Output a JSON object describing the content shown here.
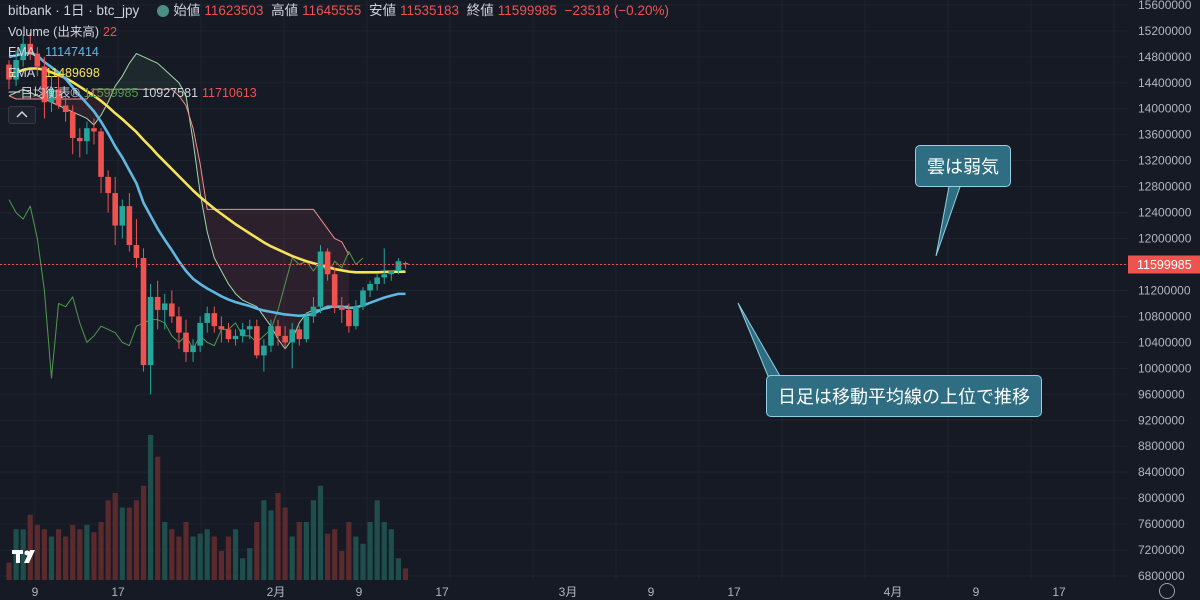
{
  "header": {
    "symbol": "bitbank · 1日 · btc_jpy",
    "open_label": "始値",
    "open": "11623503",
    "high_label": "高値",
    "high": "11645555",
    "low_label": "安値",
    "low": "11535183",
    "close_label": "終値",
    "close": "11599985",
    "change": "−23518 (−0.20%)"
  },
  "indicators": {
    "volume_label": "Volume (出来高)",
    "volume_value": "22",
    "ema1_label": "EMA",
    "ema1_value": "11147414",
    "ema2_label": "EMA",
    "ema2_value": "11489698",
    "ichimoku_label": "一目均衡表®",
    "ichimoku_v1": "11599985",
    "ichimoku_v2": "10927581",
    "ichimoku_v3": "11710613"
  },
  "annotations": {
    "cloud": "雲は弱気",
    "trend": "日足は移動平均線の上位で推移"
  },
  "colors": {
    "background": "#161a25",
    "up": "#26a69a",
    "down": "#ef5350",
    "ema_fast": "#5fb8e0",
    "ema_slow": "#f5e35b",
    "chikou": "#4f9a4f",
    "span_a": "#a5d6a7",
    "span_b": "#f28b8b",
    "price_line": "#ef5350",
    "tag_bg": "#ef5350",
    "callout_bg": "#2f6e82"
  },
  "chart_data": {
    "type": "candlestick",
    "price_axis": [
      "15600000",
      "15200000",
      "14800000",
      "14400000",
      "14000000",
      "13600000",
      "13200000",
      "12800000",
      "12400000",
      "12000000",
      "11600000",
      "11200000",
      "10800000",
      "10400000",
      "10000000",
      "9600000",
      "9200000",
      "8800000",
      "8400000",
      "8000000",
      "7600000",
      "7200000",
      "6800000"
    ],
    "last_price": "11599985",
    "x_labels": [
      "9",
      "17",
      "2月",
      "9",
      "17",
      "3月",
      "9",
      "17",
      "4月",
      "9",
      "17"
    ],
    "candles": [
      [
        14680000,
        14750000,
        14300000,
        14450000
      ],
      [
        14450000,
        14900000,
        14350000,
        14750000
      ],
      [
        14750000,
        15150000,
        14650000,
        15000000
      ],
      [
        15000000,
        15180000,
        14750000,
        14850000
      ],
      [
        14850000,
        14950000,
        14500000,
        14650000
      ],
      [
        14650000,
        14800000,
        13850000,
        14100000
      ],
      [
        14100000,
        14500000,
        13950000,
        14300000
      ],
      [
        14300000,
        14500000,
        14000000,
        14050000
      ],
      [
        14050000,
        14200000,
        13800000,
        13950000
      ],
      [
        13950000,
        14050000,
        13300000,
        13550000
      ],
      [
        13550000,
        13700000,
        13250000,
        13500000
      ],
      [
        13500000,
        13800000,
        13300000,
        13700000
      ],
      [
        13700000,
        13850000,
        13450000,
        13650000
      ],
      [
        13650000,
        13700000,
        12700000,
        12950000
      ],
      [
        12950000,
        13050000,
        12400000,
        12700000
      ],
      [
        12700000,
        12950000,
        11900000,
        12200000
      ],
      [
        12200000,
        12600000,
        12000000,
        12500000
      ],
      [
        12500000,
        12700000,
        11800000,
        11900000
      ],
      [
        11900000,
        12300000,
        11550000,
        11700000
      ],
      [
        11700000,
        11850000,
        9950000,
        10050000
      ],
      [
        10050000,
        11300000,
        9600000,
        11100000
      ],
      [
        11100000,
        11350000,
        10600000,
        10900000
      ],
      [
        10900000,
        11150000,
        10600000,
        11000000
      ],
      [
        11000000,
        11200000,
        10700000,
        10800000
      ],
      [
        10800000,
        10950000,
        10300000,
        10550000
      ],
      [
        10550000,
        10750000,
        10100000,
        10250000
      ],
      [
        10250000,
        10450000,
        10100000,
        10350000
      ],
      [
        10350000,
        10800000,
        10250000,
        10700000
      ],
      [
        10700000,
        10950000,
        10550000,
        10850000
      ],
      [
        10850000,
        10950000,
        10550000,
        10650000
      ],
      [
        10650000,
        10800000,
        10400000,
        10600000
      ],
      [
        10600000,
        10700000,
        10400000,
        10450000
      ],
      [
        10450000,
        10600000,
        10350000,
        10500000
      ],
      [
        10500000,
        10700000,
        10400000,
        10600000
      ],
      [
        10600000,
        10750000,
        10450000,
        10650000
      ],
      [
        10650000,
        10750000,
        10150000,
        10200000
      ],
      [
        10200000,
        10450000,
        9950000,
        10350000
      ],
      [
        10350000,
        10750000,
        10250000,
        10650000
      ],
      [
        10650000,
        10750000,
        10350000,
        10500000
      ],
      [
        10500000,
        10650000,
        10300000,
        10400000
      ],
      [
        10400000,
        10700000,
        10000000,
        10600000
      ],
      [
        10600000,
        10650000,
        10350000,
        10450000
      ],
      [
        10450000,
        10850000,
        10400000,
        10800000
      ],
      [
        10800000,
        11100000,
        10700000,
        10950000
      ],
      [
        10950000,
        11900000,
        10850000,
        11800000
      ],
      [
        11800000,
        11850000,
        11350000,
        11450000
      ],
      [
        11450000,
        11550000,
        10850000,
        10950000
      ],
      [
        10950000,
        11100000,
        10700000,
        10900000
      ],
      [
        10900000,
        11000000,
        10550000,
        10650000
      ],
      [
        10650000,
        11050000,
        10600000,
        10950000
      ],
      [
        10950000,
        11250000,
        10900000,
        11200000
      ],
      [
        11200000,
        11350000,
        11100000,
        11300000
      ],
      [
        11300000,
        11450000,
        11200000,
        11400000
      ],
      [
        11400000,
        11850000,
        11300000,
        11450000
      ],
      [
        11450000,
        11500000,
        11350000,
        11500000
      ],
      [
        11500000,
        11700000,
        11450000,
        11650000
      ],
      [
        11623503,
        11645555,
        11535183,
        11599985
      ]
    ],
    "volume_axis": [
      "6800000",
      "7200000",
      "7600000",
      "8000000"
    ],
    "volume_relative": [
      0.12,
      0.35,
      0.35,
      0.45,
      0.38,
      0.35,
      0.3,
      0.35,
      0.3,
      0.38,
      0.35,
      0.38,
      0.33,
      0.4,
      0.55,
      0.6,
      0.5,
      0.5,
      0.55,
      0.65,
      1.0,
      0.85,
      0.4,
      0.35,
      0.3,
      0.4,
      0.3,
      0.32,
      0.35,
      0.3,
      0.2,
      0.3,
      0.35,
      0.15,
      0.22,
      0.4,
      0.55,
      0.48,
      0.6,
      0.5,
      0.3,
      0.4,
      0.4,
      0.55,
      0.65,
      0.32,
      0.35,
      0.2,
      0.4,
      0.3,
      0.25,
      0.4,
      0.55,
      0.4,
      0.35,
      0.15,
      0.08
    ],
    "ema_fast": [
      14800000,
      14820000,
      14850000,
      14860000,
      14820000,
      14720000,
      14640000,
      14560000,
      14460000,
      14330000,
      14200000,
      14080000,
      13960000,
      13800000,
      13620000,
      13420000,
      13250000,
      13050000,
      12850000,
      12550000,
      12350000,
      12150000,
      11980000,
      11820000,
      11650000,
      11500000,
      11380000,
      11300000,
      11230000,
      11170000,
      11110000,
      11060000,
      11020000,
      10990000,
      10960000,
      10920000,
      10890000,
      10870000,
      10850000,
      10830000,
      10820000,
      10810000,
      10820000,
      10840000,
      10900000,
      10950000,
      10950000,
      10950000,
      10930000,
      10940000,
      10970000,
      11010000,
      11050000,
      11090000,
      11120000,
      11147414,
      11147414
    ],
    "ema_slow": [
      14500000,
      14550000,
      14600000,
      14620000,
      14620000,
      14600000,
      14560000,
      14520000,
      14470000,
      14410000,
      14340000,
      14270000,
      14200000,
      14120000,
      14030000,
      13930000,
      13840000,
      13740000,
      13640000,
      13520000,
      13410000,
      13290000,
      13180000,
      13070000,
      12960000,
      12850000,
      12740000,
      12640000,
      12550000,
      12460000,
      12380000,
      12300000,
      12220000,
      12150000,
      12080000,
      12010000,
      11940000,
      11880000,
      11830000,
      11780000,
      11730000,
      11690000,
      11650000,
      11620000,
      11590000,
      11560000,
      11530000,
      11510000,
      11490000,
      11480000,
      11480000,
      11480000,
      11480000,
      11485000,
      11488000,
      11489698,
      11489698
    ],
    "chikou": [
      12600000,
      12400000,
      12300000,
      12500000,
      12000000,
      11200000,
      9850000,
      11000000,
      10950000,
      11100000,
      10700000,
      10400000,
      10500000,
      10650000,
      10600000,
      10550000,
      10400000,
      10350000,
      10650000,
      10700000,
      10750000,
      10750000,
      10700000,
      10500000,
      10400000,
      10500000,
      10300000,
      10500000,
      10400000,
      10350000,
      10600000,
      10600000,
      10700000,
      10500000,
      10500000,
      10400000,
      10500000,
      10600000,
      10900000,
      11300000,
      11700000,
      11600000,
      11650000,
      11500000,
      11650000,
      11450000,
      11650000,
      11550000,
      11800000,
      11600000,
      11700000
    ],
    "span_a": [
      14200000,
      14250000,
      14300000,
      14250000,
      14200000,
      14150000,
      14100000,
      14050000,
      14000000,
      13950000,
      13900000,
      13850000,
      13750000,
      13900000,
      14100000,
      14350000,
      14500000,
      14700000,
      14850000,
      14800000,
      14750000,
      14700000,
      14600000,
      14500000,
      14400000,
      14200000,
      13500000,
      12700000,
      12100000,
      11700000,
      11500000,
      11300000,
      11150000,
      11050000,
      11000000,
      10950000,
      10800000,
      10650000,
      10450000,
      10300000,
      10450000,
      10700000,
      10850000,
      10900000,
      10900000,
      10920000,
      10950000,
      10950000,
      10960000
    ],
    "span_b": [
      14200000,
      14150000,
      14150000,
      14150000,
      14150000,
      14150000,
      14150000,
      14150000,
      14150000,
      14150000,
      14150000,
      14150000,
      14300000,
      14300000,
      14300000,
      14300000,
      14300000,
      14300000,
      14300000,
      14300000,
      14300000,
      14300000,
      14300000,
      14300000,
      14200000,
      14050000,
      13700000,
      13150000,
      12450000,
      12450000,
      12450000,
      12450000,
      12450000,
      12450000,
      12450000,
      12450000,
      12450000,
      12450000,
      12450000,
      12450000,
      12450000,
      12450000,
      12450000,
      12450000,
      12300000,
      12150000,
      12000000,
      11950000,
      11750000
    ]
  }
}
